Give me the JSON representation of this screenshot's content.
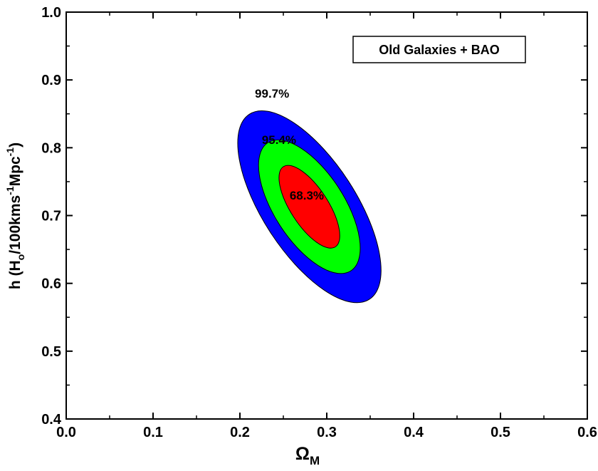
{
  "chart_data": {
    "type": "contour",
    "title": "",
    "xlabel": {
      "base": "Ω",
      "sub": "M"
    },
    "ylabel": {
      "pre": "h (H",
      "sub": "o",
      "mid": "/100kms",
      "sup1": "-1",
      "post": "Mpc",
      "sup2": "-1",
      "close": ")"
    },
    "xlim": [
      0.0,
      0.6
    ],
    "ylim": [
      0.4,
      1.0
    ],
    "xticks": [
      "0.0",
      "0.1",
      "0.2",
      "0.3",
      "0.4",
      "0.5",
      "0.6"
    ],
    "yticks": [
      "0.4",
      "0.5",
      "0.6",
      "0.7",
      "0.8",
      "0.9",
      "1.0"
    ],
    "grid": false,
    "legend": {
      "text": "Old Galaxies + BAO",
      "placement": "top-right"
    },
    "center": {
      "x": 0.28,
      "y": 0.713
    },
    "contours": [
      {
        "name": "99.7%",
        "color": "#0000ff",
        "x_range": [
          0.198,
          0.363
        ],
        "y_range": [
          0.59,
          0.873
        ],
        "label": {
          "text": "99.7%",
          "x": 0.237,
          "y": 0.88
        }
      },
      {
        "name": "95.4%",
        "color": "#00ff00",
        "x_range": [
          0.222,
          0.339
        ],
        "y_range": [
          0.621,
          0.818
        ],
        "label": {
          "text": "95.4%",
          "x": 0.245,
          "y": 0.812
        }
      },
      {
        "name": "68.3%",
        "color": "#ff0000",
        "x_range": [
          0.245,
          0.315
        ],
        "y_range": [
          0.656,
          0.778
        ],
        "label": {
          "text": "68.3%",
          "x": 0.277,
          "y": 0.73
        }
      }
    ]
  }
}
